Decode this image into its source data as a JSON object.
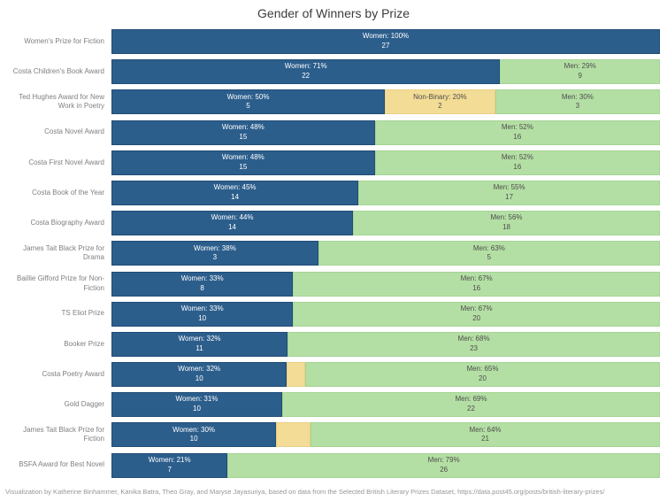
{
  "chart_data": {
    "type": "bar",
    "orientation": "horizontal",
    "stacked": true,
    "legend": "none",
    "title": "Gender of Winners by Prize",
    "caption": "Visualization by Katherine Binhammer, Kanika Batra, Theo Gray, and Maryse Jayasuriya, based on data from the Selected British Literary Prizes Dataset, https://data.post45.org/posts/british-literary-prizes/",
    "value_format": "Gender: pct% over count",
    "xlim": [
      0,
      100
    ],
    "colors": {
      "Women": "#2c5e8c",
      "Non-Binary": "#f3dc95",
      "Men": "#b4dfa4"
    },
    "border_colors": {
      "Women": "#204c77",
      "Non-Binary": "#e9d088",
      "Men": "#a5d494"
    },
    "label_text_colors": {
      "Women": "#ffffff",
      "Non-Binary": "#4d4d4d",
      "Men": "#4d4d4d"
    },
    "rows": [
      {
        "prize": "Women's Prize for Fiction",
        "segments": [
          {
            "gender": "Women",
            "pct": 100,
            "count": 27,
            "labeled": true
          }
        ]
      },
      {
        "prize": "Costa Children's Book Award",
        "segments": [
          {
            "gender": "Women",
            "pct": 71,
            "count": 22,
            "labeled": true
          },
          {
            "gender": "Men",
            "pct": 29,
            "count": 9,
            "labeled": true
          }
        ]
      },
      {
        "prize": "Ted Hughes Award for New Work in Poetry",
        "segments": [
          {
            "gender": "Women",
            "pct": 50,
            "count": 5,
            "labeled": true
          },
          {
            "gender": "Non-Binary",
            "pct": 20,
            "count": 2,
            "labeled": true
          },
          {
            "gender": "Men",
            "pct": 30,
            "count": 3,
            "labeled": true
          }
        ]
      },
      {
        "prize": "Costa Novel Award",
        "segments": [
          {
            "gender": "Women",
            "pct": 48,
            "count": 15,
            "labeled": true
          },
          {
            "gender": "Men",
            "pct": 52,
            "count": 16,
            "labeled": true
          }
        ]
      },
      {
        "prize": "Costa First Novel Award",
        "segments": [
          {
            "gender": "Women",
            "pct": 48,
            "count": 15,
            "labeled": true
          },
          {
            "gender": "Men",
            "pct": 52,
            "count": 16,
            "labeled": true
          }
        ]
      },
      {
        "prize": "Costa Book of the Year",
        "segments": [
          {
            "gender": "Women",
            "pct": 45,
            "count": 14,
            "labeled": true
          },
          {
            "gender": "Men",
            "pct": 55,
            "count": 17,
            "labeled": true
          }
        ]
      },
      {
        "prize": "Costa Biography Award",
        "segments": [
          {
            "gender": "Women",
            "pct": 44,
            "count": 14,
            "labeled": true
          },
          {
            "gender": "Men",
            "pct": 56,
            "count": 18,
            "labeled": true
          }
        ]
      },
      {
        "prize": "James Tait Black Prize for Drama",
        "segments": [
          {
            "gender": "Women",
            "pct": 38,
            "count": 3,
            "labeled": true
          },
          {
            "gender": "Men",
            "pct": 63,
            "count": 5,
            "labeled": true
          }
        ]
      },
      {
        "prize": "Baillie Gifford Prize for Non-Fiction",
        "segments": [
          {
            "gender": "Women",
            "pct": 33,
            "count": 8,
            "labeled": true
          },
          {
            "gender": "Men",
            "pct": 67,
            "count": 16,
            "labeled": true
          }
        ]
      },
      {
        "prize": "TS Eliot Prize",
        "segments": [
          {
            "gender": "Women",
            "pct": 33,
            "count": 10,
            "labeled": true
          },
          {
            "gender": "Men",
            "pct": 67,
            "count": 20,
            "labeled": true
          }
        ]
      },
      {
        "prize": "Booker Prize",
        "segments": [
          {
            "gender": "Women",
            "pct": 32,
            "count": 11,
            "labeled": true
          },
          {
            "gender": "Men",
            "pct": 68,
            "count": 23,
            "labeled": true
          }
        ]
      },
      {
        "prize": "Costa Poetry Award",
        "segments": [
          {
            "gender": "Women",
            "pct": 32,
            "count": 10,
            "labeled": true
          },
          {
            "gender": "Non-Binary",
            "pct": 3,
            "count": "",
            "labeled": false
          },
          {
            "gender": "Men",
            "pct": 65,
            "count": 20,
            "labeled": true
          }
        ]
      },
      {
        "prize": "Gold Dagger",
        "segments": [
          {
            "gender": "Women",
            "pct": 31,
            "count": 10,
            "labeled": true
          },
          {
            "gender": "Men",
            "pct": 69,
            "count": 22,
            "labeled": true
          }
        ]
      },
      {
        "prize": "James Tait Black Prize for Fiction",
        "segments": [
          {
            "gender": "Women",
            "pct": 30,
            "count": 10,
            "labeled": true
          },
          {
            "gender": "Non-Binary",
            "pct": 6,
            "count": "",
            "labeled": false
          },
          {
            "gender": "Men",
            "pct": 64,
            "count": 21,
            "labeled": true
          }
        ]
      },
      {
        "prize": "BSFA Award for Best Novel",
        "segments": [
          {
            "gender": "Women",
            "pct": 21,
            "count": 7,
            "labeled": true
          },
          {
            "gender": "Men",
            "pct": 79,
            "count": 26,
            "labeled": true
          }
        ]
      }
    ]
  }
}
